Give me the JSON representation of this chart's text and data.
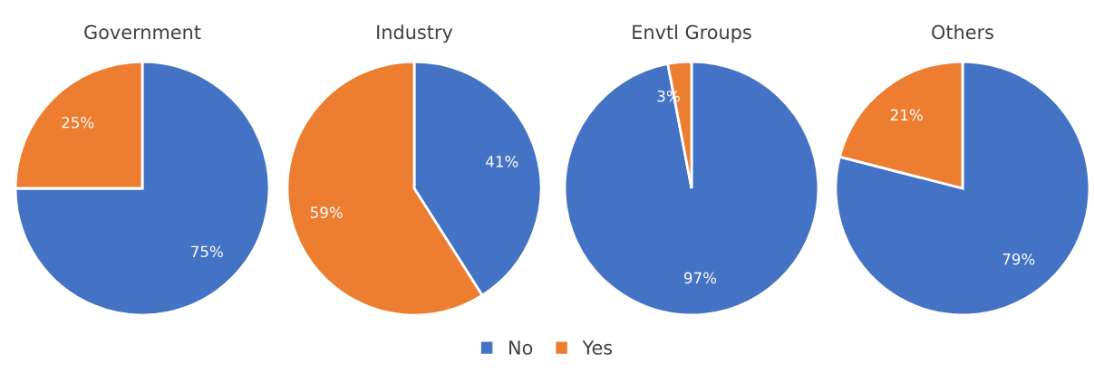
{
  "chart_data": [
    {
      "type": "pie",
      "title": "Government",
      "categories": [
        "No",
        "Yes"
      ],
      "values": [
        75,
        25
      ],
      "colors": [
        "#4472c4",
        "#ed7d31"
      ],
      "value_labels": [
        "75%",
        "25%"
      ],
      "legend": "bottom"
    },
    {
      "type": "pie",
      "title": "Industry",
      "categories": [
        null,
        null
      ],
      "values": [
        41,
        59
      ],
      "colors": [
        "#4472c4",
        "#ed7d31"
      ],
      "value_labels": [
        "41%",
        "59%"
      ]
    },
    {
      "type": "pie",
      "title": "Envtl Groups",
      "categories": [
        null,
        null
      ],
      "values": [
        97,
        3
      ],
      "colors": [
        "#4472c4",
        "#ed7d31"
      ],
      "value_labels": [
        "97%",
        "3%"
      ]
    },
    {
      "type": "pie",
      "title": "Others",
      "categories": [
        null,
        null
      ],
      "values": [
        79,
        21
      ],
      "colors": [
        "#4472c4",
        "#ed7d31"
      ],
      "value_labels": [
        "79%",
        "21%"
      ]
    }
  ]
}
